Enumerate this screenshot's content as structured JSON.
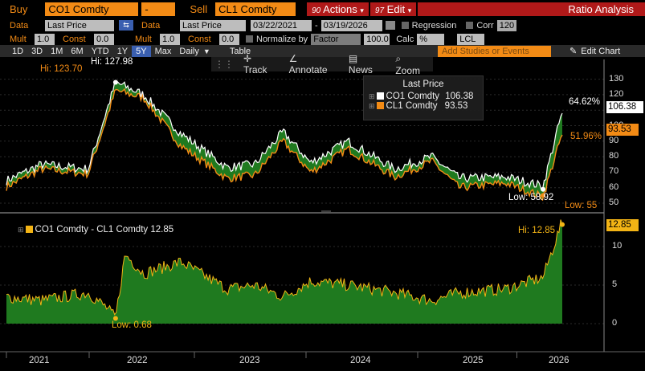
{
  "toolbar1": {
    "buy_label": "Buy",
    "buy_ticker": "CO1 Comdty",
    "buy_dash": "-",
    "sell_label": "Sell",
    "sell_ticker": "CL1 Comdty",
    "actions_num": "90",
    "actions_label": "Actions",
    "edit_num": "97",
    "edit_label": "Edit",
    "title": "Ratio Analysis"
  },
  "toolbar2": {
    "data_label": "Data",
    "data1_value": "Last Price",
    "data2_label": "Data",
    "data2_value": "Last Price",
    "start_date": "03/22/2021",
    "end_date": "03/19/2026",
    "regression_label": "Regression",
    "corr_label": "Corr",
    "corr_value": "120"
  },
  "toolbar3": {
    "mult_label": "Mult",
    "mult1": "1.0",
    "const_label": "Const",
    "const1": "0.0",
    "mult2_label": "Mult",
    "mult2": "1.0",
    "const2_label": "Const",
    "const2": "0.0",
    "normalize_label": "Normalize by",
    "normalize_value": "Factor",
    "factor_value": "100.0",
    "calc_label": "Calc",
    "calc_value": "%",
    "lcl_value": "LCL"
  },
  "toolbar4": {
    "periods": [
      "1D",
      "3D",
      "1M",
      "6M",
      "YTD",
      "1Y",
      "5Y",
      "Max"
    ],
    "selected": "5Y",
    "freq": "Daily",
    "table": "Table",
    "studies_placeholder": "Add Studies or Events",
    "edit_chart": "Edit Chart"
  },
  "chart_tools": {
    "track": "Track",
    "annotate": "Annotate",
    "news": "News",
    "zoom": "Zoom"
  },
  "colors": {
    "co1": "#ffffff",
    "cl1": "#f38b15",
    "fill": "#1f7a1f",
    "accent": "#f38b15"
  },
  "upper_legend": {
    "title": "Last Price",
    "co1_name": "CO1 Comdty",
    "co1_value": "106.38",
    "cl1_name": "CL1 Comdty",
    "cl1_value": "93.53"
  },
  "upper_annotations": {
    "hi_white": "Hi: 127.98",
    "hi_orange": "Hi: 123.70",
    "low_white": "Low: 58.92",
    "low_orange": "Low: 55",
    "pct_white": "64.62%",
    "pct_orange": "51.96%",
    "tag_white": "106.38",
    "tag_orange": "93.53"
  },
  "lower_legend": {
    "label": "CO1 Comdty - CL1 Comdty 12.85"
  },
  "lower_annotations": {
    "hi": "Hi: 12.85",
    "low": "Low: 0.68",
    "tag": "12.85"
  },
  "upper_yticks": [
    "130",
    "120",
    "110",
    "100",
    "90",
    "80",
    "70",
    "60",
    "50"
  ],
  "lower_yticks": [
    "10",
    "5",
    "0"
  ],
  "xticks": [
    "2021",
    "2022",
    "2023",
    "2024",
    "2025",
    "2026"
  ],
  "chart_data": [
    {
      "type": "line",
      "title": "Last Price",
      "ylim": [
        48,
        135
      ],
      "series": [
        {
          "name": "CO1 Comdty",
          "x": [
            "2021-03",
            "2021-07",
            "2021-12",
            "2022-03",
            "2022-06",
            "2022-10",
            "2023-03",
            "2023-06",
            "2023-09",
            "2023-12",
            "2024-04",
            "2024-09",
            "2025-01",
            "2025-04",
            "2025-09",
            "2026-01",
            "2026-03"
          ],
          "values": [
            64,
            75,
            72,
            127.98,
            120,
            95,
            73,
            75,
            96,
            76,
            90,
            72,
            80,
            66,
            67,
            61,
            106.38
          ]
        },
        {
          "name": "CL1 Comdty",
          "x": [
            "2021-03",
            "2021-07",
            "2021-12",
            "2022-03",
            "2022-06",
            "2022-10",
            "2023-03",
            "2023-06",
            "2023-09",
            "2023-12",
            "2024-04",
            "2024-09",
            "2025-01",
            "2025-04",
            "2025-09",
            "2026-01",
            "2026-03"
          ],
          "values": [
            61,
            73,
            70,
            123.7,
            119,
            88,
            67,
            69,
            91,
            71,
            86,
            68,
            78,
            61,
            64,
            55,
            93.53
          ]
        }
      ]
    },
    {
      "type": "area",
      "series": [
        {
          "name": "CO1 Comdty - CL1 Comdty",
          "x": [
            "2021-03",
            "2021-07",
            "2021-12",
            "2022-02",
            "2022-03",
            "2022-04",
            "2022-06",
            "2022-10",
            "2023-03",
            "2023-06",
            "2023-09",
            "2023-12",
            "2024-04",
            "2024-09",
            "2025-01",
            "2025-04",
            "2025-09",
            "2026-01",
            "2026-03"
          ],
          "values": [
            3.5,
            3.0,
            4.0,
            2.0,
            0.68,
            9.0,
            6.5,
            8.0,
            4.5,
            5.0,
            3.5,
            5.5,
            5.0,
            4.0,
            3.0,
            4.0,
            4.5,
            6.0,
            12.85
          ]
        }
      ],
      "ylim": [
        -2,
        15
      ]
    }
  ]
}
